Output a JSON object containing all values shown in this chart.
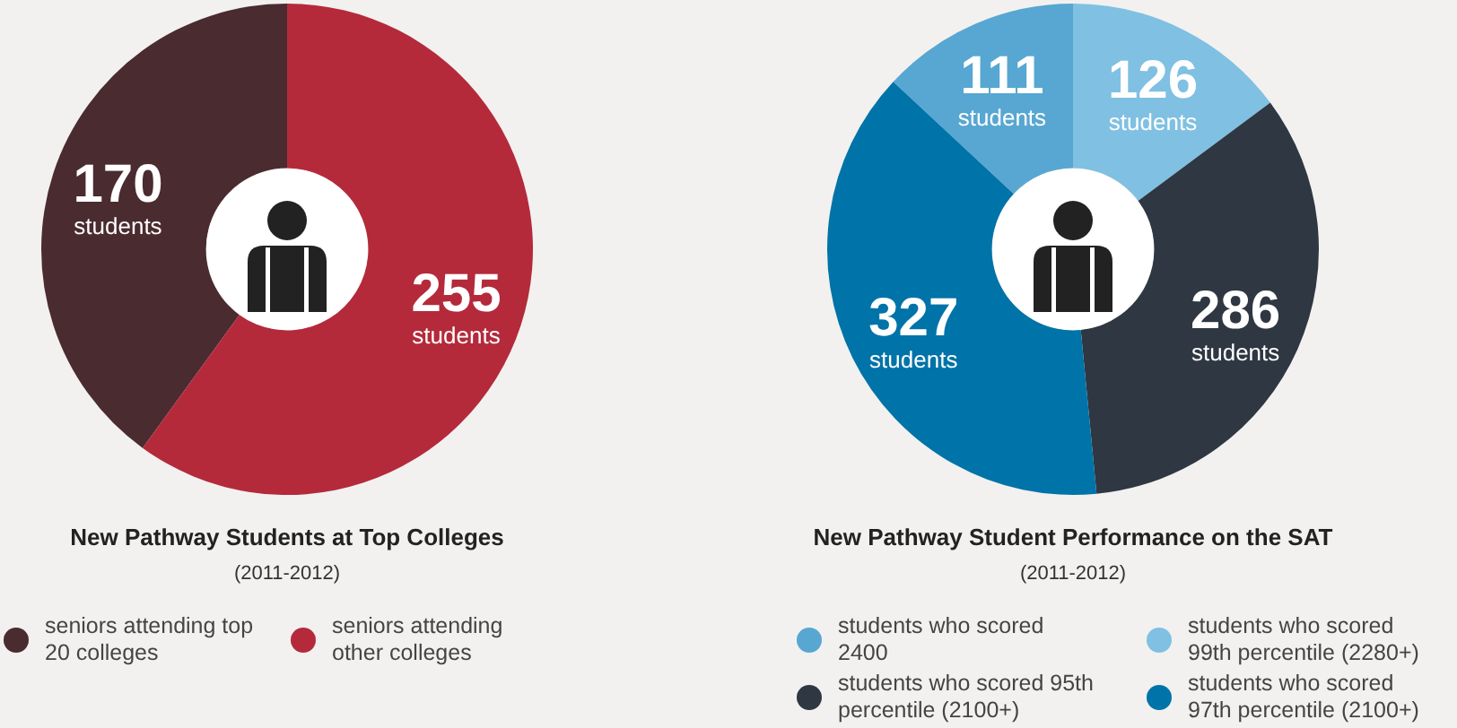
{
  "chart_data": [
    {
      "type": "donut",
      "title": "New Pathway Students at Top Colleges",
      "subtitle": "(2011-2012)",
      "categories": [
        "seniors attending top 20 colleges",
        "seniors attending other colleges"
      ],
      "values": [
        170,
        255
      ],
      "colors": [
        "#4a2b30",
        "#b42a3b"
      ],
      "value_labels": [
        "170 students",
        "255 students"
      ],
      "legend": "bottom"
    },
    {
      "type": "donut",
      "title": "New Pathway Student Performance on the SAT",
      "subtitle": "(2011-2012)",
      "categories": [
        "students who scored 2400",
        "students who scored 99th percentile (2280+)",
        "students who scored 95th percentile (2100+)",
        "students who scored 97th percentile (2100+)"
      ],
      "values": [
        111,
        126,
        286,
        327
      ],
      "colors": [
        "#57a7d2",
        "#80c0e2",
        "#2e3742",
        "#0073a8"
      ],
      "value_labels": [
        "111 students",
        "126 students",
        "286 students",
        "327 students"
      ],
      "legend": "bottom"
    }
  ]
}
